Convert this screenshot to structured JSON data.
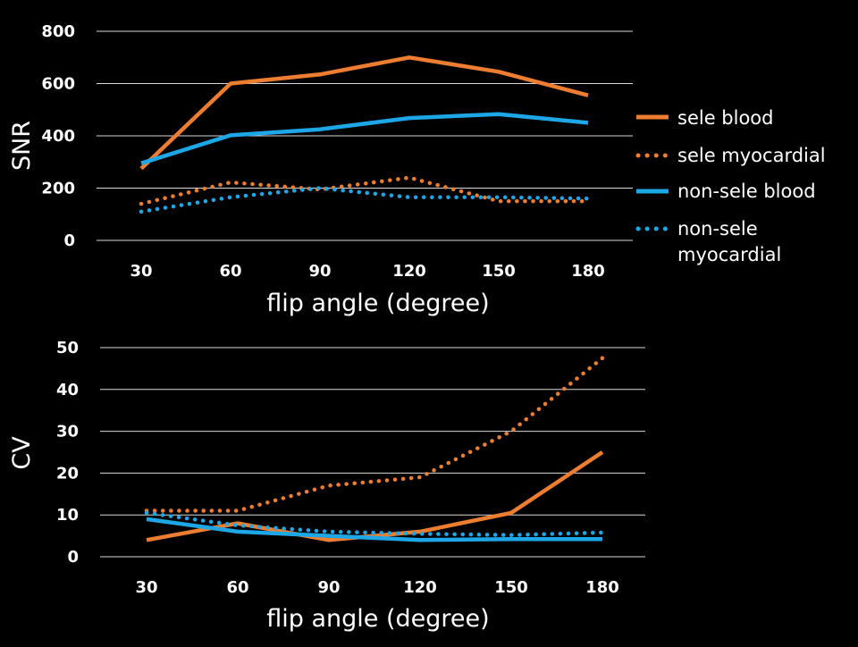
{
  "colors": {
    "orange": "#ED7D31",
    "blue": "#1EA7E6",
    "text": "#FFFFFF",
    "grid": "#D9D9D9",
    "background": "#000000"
  },
  "legend": {
    "items": [
      {
        "label": "sele blood",
        "color": "#ED7D31",
        "style": "solid"
      },
      {
        "label": "sele myocardial",
        "color": "#ED7D31",
        "style": "dotted"
      },
      {
        "label": "non-sele blood",
        "color": "#1EA7E6",
        "style": "solid"
      },
      {
        "label": "non-sele myocardial",
        "color": "#1EA7E6",
        "style": "dotted"
      }
    ],
    "placement": "right"
  },
  "chart_data": [
    {
      "type": "line",
      "title": "",
      "xlabel": "flip angle (degree)",
      "ylabel": "SNR",
      "categories": [
        "30",
        "60",
        "90",
        "120",
        "150",
        "180"
      ],
      "ylim": [
        0,
        800
      ],
      "yticks": [
        "0",
        "200",
        "400",
        "600",
        "800"
      ],
      "grid": true,
      "series": [
        {
          "name": "sele blood",
          "values": [
            275,
            600,
            635,
            700,
            645,
            555
          ]
        },
        {
          "name": "sele myocardial",
          "values": [
            140,
            222,
            195,
            240,
            150,
            150
          ]
        },
        {
          "name": "non-sele blood",
          "values": [
            295,
            402,
            425,
            468,
            483,
            450
          ]
        },
        {
          "name": "non-sele myocardial",
          "values": [
            110,
            165,
            200,
            165,
            165,
            160
          ]
        }
      ]
    },
    {
      "type": "line",
      "title": "",
      "xlabel": "flip angle (degree)",
      "ylabel": "CV",
      "categories": [
        "30",
        "60",
        "90",
        "120",
        "150",
        "180"
      ],
      "ylim": [
        0,
        50
      ],
      "yticks": [
        "0",
        "10",
        "20",
        "30",
        "40",
        "50"
      ],
      "grid": true,
      "series": [
        {
          "name": "sele blood",
          "values": [
            4,
            8,
            4,
            6,
            10.5,
            25
          ]
        },
        {
          "name": "sele myocardial",
          "values": [
            11,
            11,
            17,
            19,
            30,
            47.5
          ]
        },
        {
          "name": "non-sele blood",
          "values": [
            9,
            6,
            5,
            4,
            4.2,
            4.2
          ]
        },
        {
          "name": "non-sele myocardial",
          "values": [
            10.5,
            7.5,
            6,
            5.5,
            5.2,
            5.8
          ]
        }
      ]
    }
  ]
}
